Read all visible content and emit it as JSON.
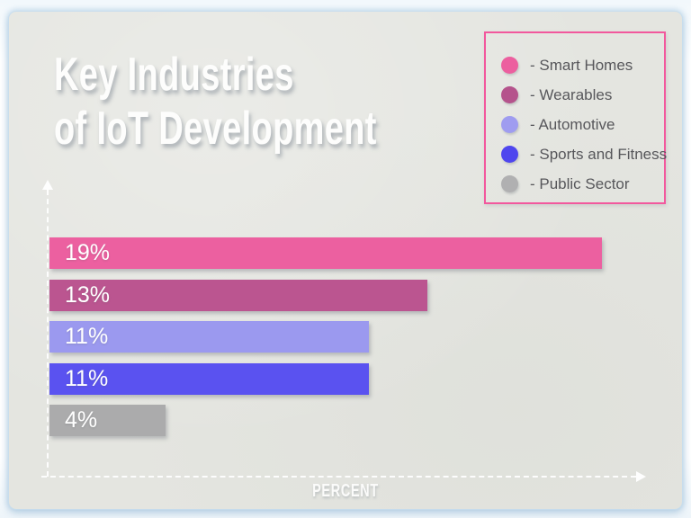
{
  "title": {
    "line1": "Key Industries",
    "line2": "of IoT Development"
  },
  "legend": {
    "items": [
      {
        "label": "- Smart Homes",
        "color": "#ec5f9f"
      },
      {
        "label": "- Wearables",
        "color": "#b5538c"
      },
      {
        "label": "- Automotive",
        "color": "#9f9cf0"
      },
      {
        "label": "- Sports and Fitness",
        "color": "#4f46ee"
      },
      {
        "label": "- Public Sector",
        "color": "#b0b0b1"
      }
    ]
  },
  "chart_data": {
    "type": "bar",
    "orientation": "horizontal",
    "title": "Key Industries of IoT Development",
    "categories": [
      "Smart Homes",
      "Wearables",
      "Automotive",
      "Sports and Fitness",
      "Public Sector"
    ],
    "values": [
      19,
      13,
      11,
      11,
      4
    ],
    "unit": "%",
    "bar_labels": [
      "19%",
      "13%",
      "11%",
      "11%",
      "4%"
    ],
    "colors": [
      "#ec60a0",
      "#bb5590",
      "#9b99ef",
      "#5a52f0",
      "#ababac"
    ],
    "xlabel": "PERCENT",
    "ylabel": "",
    "xlim": [
      0,
      20
    ],
    "grid": false,
    "legend_position": "top-right"
  },
  "colors": {
    "paper_background": "#e4e5e0",
    "legend_border": "#f2589d",
    "axis": "#ffffff",
    "title_text": "#fdfdfc",
    "legend_text": "#57575b"
  }
}
